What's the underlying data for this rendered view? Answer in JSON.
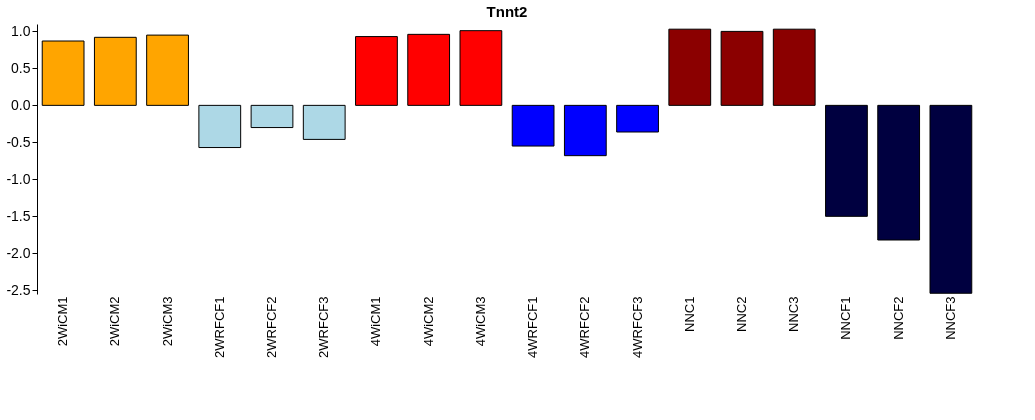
{
  "chart_data": {
    "type": "bar",
    "title": "Tnnt2",
    "categories": [
      "2WiCM1",
      "2WiCM2",
      "2WiCM3",
      "2WRFCF1",
      "2WRFCF2",
      "2WRFCF3",
      "4WiCM1",
      "4WiCM2",
      "4WiCM3",
      "4WRFCF1",
      "4WRFCF2",
      "4WRFCF3",
      "NNC1",
      "NNC2",
      "NNC3",
      "NNCF1",
      "NNCF2",
      "NNCF3"
    ],
    "values": [
      0.87,
      0.92,
      0.95,
      -0.57,
      -0.3,
      -0.46,
      0.93,
      0.96,
      1.01,
      -0.55,
      -0.68,
      -0.36,
      1.03,
      1.0,
      1.03,
      -1.5,
      -1.82,
      -2.54
    ],
    "colors": [
      "#ffa500",
      "#ffa500",
      "#ffa500",
      "#add8e6",
      "#add8e6",
      "#add8e6",
      "#ff0000",
      "#ff0000",
      "#ff0000",
      "#0000ff",
      "#0000ff",
      "#0000ff",
      "#8b0000",
      "#8b0000",
      "#8b0000",
      "#000040",
      "#000040",
      "#000040"
    ],
    "ylim": [
      -2.55,
      1.1
    ],
    "yticks": [
      {
        "value": -2.5,
        "label": "-2.5"
      },
      {
        "value": -2,
        "label": "-2.0"
      },
      {
        "value": -1.5,
        "label": "-1.5"
      },
      {
        "value": -1,
        "label": "-1.0"
      },
      {
        "value": -0.5,
        "label": "-0.5"
      },
      {
        "value": 0,
        "label": "0.0"
      },
      {
        "value": 0.5,
        "label": "0.5"
      },
      {
        "value": 1,
        "label": "1.0"
      }
    ],
    "grid": false
  }
}
